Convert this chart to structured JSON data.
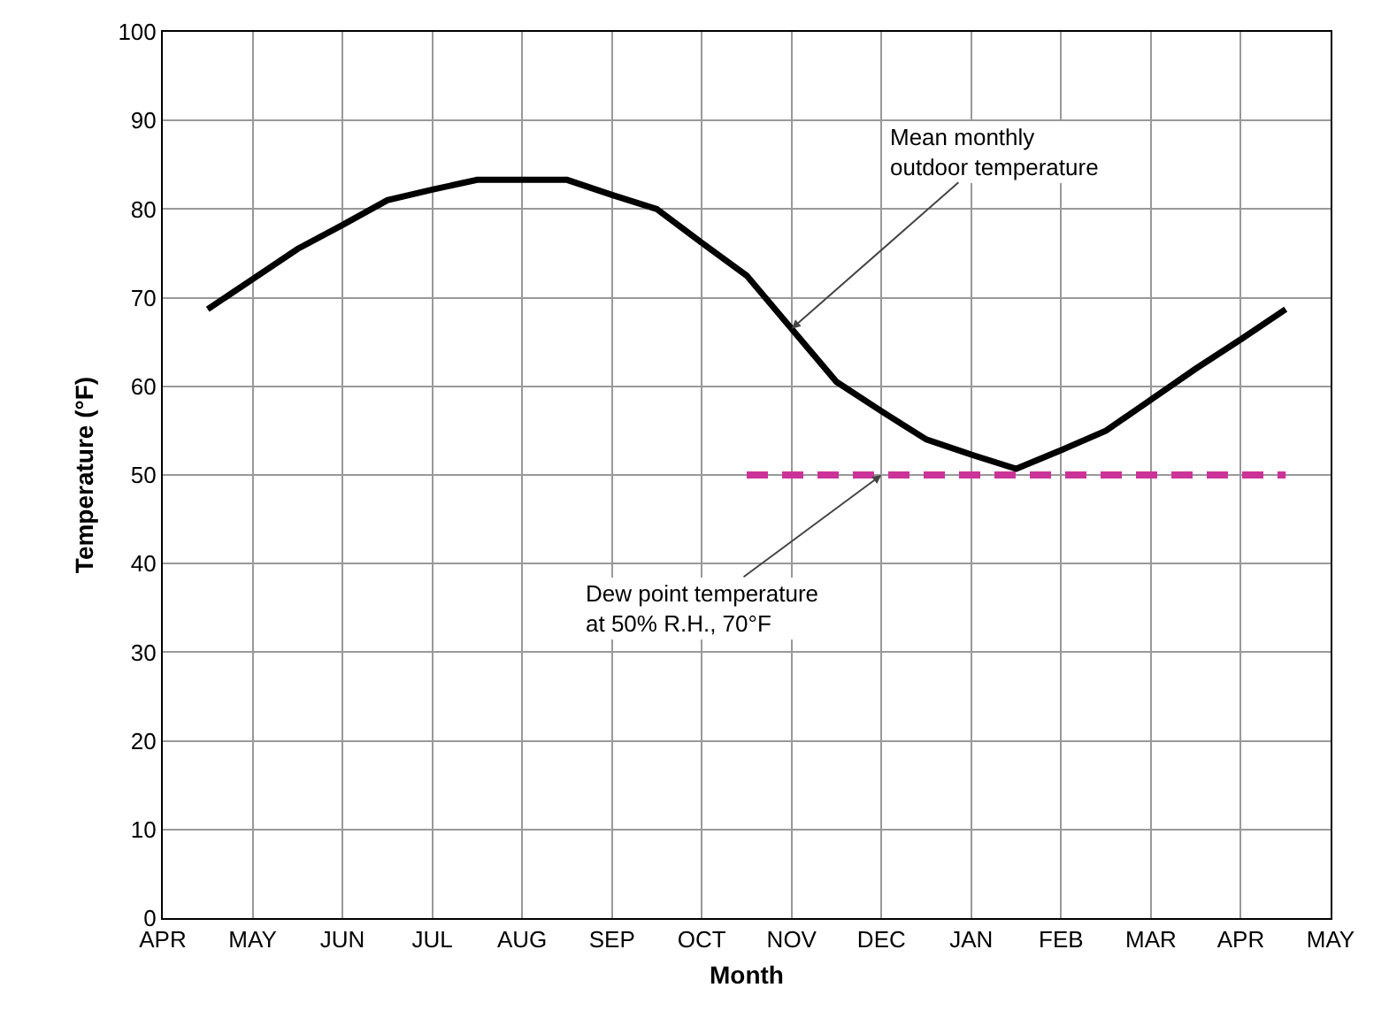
{
  "chart_data": {
    "type": "line",
    "xlabel": "Month",
    "ylabel": "Temperature (°F)",
    "categories": [
      "APR",
      null,
      "MAY",
      null,
      "JUN",
      null,
      "JUL",
      null,
      "AUG",
      null,
      "SEP",
      null,
      "OCT",
      null,
      "NOV",
      null,
      "DEC",
      null,
      "JAN",
      null,
      "FEB",
      null,
      "MAR",
      null,
      "APR",
      null,
      "MAY"
    ],
    "ylim": [
      0,
      100
    ],
    "yticks": [
      0,
      10,
      20,
      30,
      40,
      50,
      60,
      70,
      80,
      90,
      100
    ],
    "grid": true,
    "marker": "none",
    "series": [
      {
        "color": "#000000",
        "line_style": "solid",
        "values": [
          null,
          68.7,
          72.1,
          75.5,
          78.2,
          81,
          82.2,
          83.3,
          83.3,
          83.3,
          81.6,
          80,
          76.2,
          72.5,
          66.5,
          60.5,
          57.2,
          54,
          52.3,
          50.7,
          52.8,
          55,
          58.5,
          62,
          65.3,
          68.7,
          null
        ]
      },
      {
        "color": "#cc3399",
        "line_style": "dashed",
        "values": [
          null,
          null,
          null,
          null,
          null,
          null,
          null,
          null,
          null,
          null,
          null,
          null,
          null,
          50,
          50,
          50,
          50,
          50,
          50,
          50,
          50,
          50,
          50,
          50,
          50,
          50,
          null
        ]
      }
    ],
    "annotations": [
      {
        "text": "Mean monthly\noutdoor temperature",
        "x": "NOV",
        "y": 66.5
      },
      {
        "text": "Dew point temperature\nat 50% R.H., 70°F",
        "x": "DEC",
        "y": 50
      }
    ]
  }
}
